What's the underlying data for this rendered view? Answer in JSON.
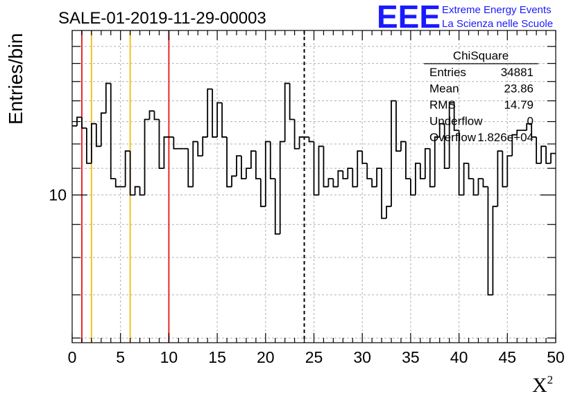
{
  "title": "SALE-01-2019-11-29-00003",
  "logo": {
    "mark": "EEE",
    "line1": "Extreme Energy Events",
    "line2": "La Scienza nelle Scuole",
    "color": "#1a1aff"
  },
  "chart_data": {
    "type": "histogram",
    "title": "SALE-01-2019-11-29-00003",
    "xlabel": "X",
    "xlabel_sup": "2",
    "ylabel": "Entries/bin",
    "xlim": [
      0,
      50
    ],
    "ylim_log": [
      5.9,
      18
    ],
    "yscale": "log",
    "grid": true,
    "x_ticks": [
      0,
      5,
      10,
      15,
      20,
      25,
      30,
      35,
      40,
      45,
      50
    ],
    "x_tick_labels": [
      "0",
      "5",
      "10",
      "15",
      "20",
      "25",
      "30",
      "35",
      "40",
      "45",
      "50"
    ],
    "y_ticks": [
      10
    ],
    "y_tick_labels": [
      "10"
    ],
    "bin_width": 0.5,
    "values": [
      12.8,
      13.2,
      12.7,
      11.2,
      12.9,
      11.9,
      13.4,
      14.9,
      10.6,
      10.3,
      10.3,
      11.7,
      10.0,
      10.3,
      10.0,
      13.1,
      13.5,
      13.1,
      11.0,
      12.3,
      12.3,
      11.8,
      11.8,
      11.8,
      10.3,
      12.1,
      11.5,
      12.3,
      14.6,
      12.3,
      13.9,
      12.3,
      10.3,
      10.7,
      11.5,
      10.6,
      11.0,
      11.7,
      10.6,
      9.6,
      12.1,
      10.6,
      8.7,
      12.1,
      14.9,
      13.1,
      11.8,
      12.3,
      12.3,
      12.1,
      10.0,
      11.9,
      10.3,
      10.6,
      10.3,
      10.9,
      10.6,
      11.0,
      10.3,
      11.7,
      11.2,
      10.6,
      10.3,
      11.0,
      9.2,
      9.6,
      14.0,
      11.7,
      12.1,
      10.6,
      10.0,
      11.2,
      10.6,
      11.8,
      10.3,
      12.3,
      12.9,
      11.0,
      13.9,
      12.6,
      10.0,
      11.2,
      10.6,
      10.0,
      10.6,
      10.3,
      7.0,
      9.6,
      11.7,
      10.3,
      11.5,
      12.4,
      12.6,
      12.6,
      12.9,
      12.3,
      11.2,
      11.9,
      11.2,
      11.6
    ],
    "vertical_lines": [
      {
        "x": 1,
        "color": "#e8262a",
        "style": "solid"
      },
      {
        "x": 2,
        "color": "#f2c31c",
        "style": "solid"
      },
      {
        "x": 6,
        "color": "#f2c31c",
        "style": "solid"
      },
      {
        "x": 10,
        "color": "#e8262a",
        "style": "solid"
      },
      {
        "x": 24,
        "color": "#000000",
        "style": "dashed"
      }
    ]
  },
  "stats": {
    "name": "ChiSquare",
    "rows": [
      {
        "label": "Entries",
        "value": "34881"
      },
      {
        "label": "Mean",
        "value": "23.86"
      },
      {
        "label": "RMS",
        "value": "14.79"
      },
      {
        "label": "Underflow",
        "value": "0"
      },
      {
        "label": "Overflow",
        "value": "1.826e+04"
      }
    ]
  }
}
